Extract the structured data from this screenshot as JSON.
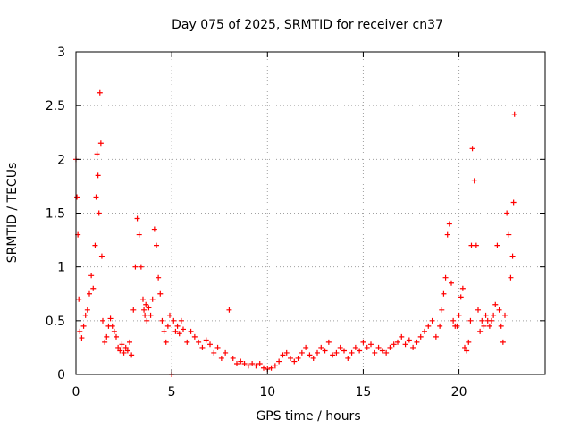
{
  "chart_data": {
    "type": "scatter",
    "title": "Day 075 of 2025, SRMTID for receiver cn37",
    "xlabel": "GPS time / hours",
    "ylabel": "SRMTID / TECUs",
    "xlim": [
      0,
      24.5
    ],
    "ylim": [
      0,
      3
    ],
    "xticks": [
      0,
      5,
      10,
      15,
      20
    ],
    "yticks": [
      0,
      0.5,
      1,
      1.5,
      2,
      2.5,
      3
    ],
    "grid": true,
    "marker": "plus",
    "series": [
      {
        "name": "SRMTID",
        "color": "#ff0000",
        "x": [
          0.0,
          0.05,
          0.1,
          0.15,
          0.2,
          0.3,
          0.4,
          0.5,
          0.6,
          0.7,
          0.8,
          0.9,
          1.0,
          1.05,
          1.1,
          1.15,
          1.2,
          1.25,
          1.3,
          1.35,
          1.4,
          1.5,
          1.6,
          1.7,
          1.8,
          1.9,
          2.0,
          2.1,
          2.2,
          2.3,
          2.4,
          2.5,
          2.6,
          2.7,
          2.8,
          2.9,
          3.0,
          3.1,
          3.2,
          3.3,
          3.4,
          3.5,
          3.55,
          3.6,
          3.65,
          3.7,
          3.8,
          3.9,
          4.0,
          4.1,
          4.2,
          4.3,
          4.4,
          4.5,
          4.6,
          4.7,
          4.8,
          4.9,
          5.0,
          5.1,
          5.2,
          5.3,
          5.4,
          5.5,
          5.6,
          5.8,
          6.0,
          6.2,
          6.4,
          6.6,
          6.8,
          7.0,
          7.2,
          7.4,
          7.6,
          7.8,
          8.0,
          8.2,
          8.4,
          8.6,
          8.8,
          9.0,
          9.2,
          9.4,
          9.6,
          9.8,
          10.0,
          10.2,
          10.4,
          10.6,
          10.8,
          11.0,
          11.2,
          11.4,
          11.6,
          11.8,
          12.0,
          12.2,
          12.4,
          12.6,
          12.8,
          13.0,
          13.2,
          13.4,
          13.6,
          13.8,
          14.0,
          14.2,
          14.4,
          14.6,
          14.8,
          15.0,
          15.2,
          15.4,
          15.6,
          15.8,
          16.0,
          16.2,
          16.4,
          16.6,
          16.8,
          17.0,
          17.2,
          17.4,
          17.6,
          17.8,
          18.0,
          18.2,
          18.4,
          18.6,
          18.8,
          19.0,
          19.1,
          19.2,
          19.3,
          19.4,
          19.5,
          19.6,
          19.7,
          19.8,
          19.9,
          20.0,
          20.1,
          20.2,
          20.3,
          20.4,
          20.5,
          20.6,
          20.65,
          20.7,
          20.8,
          20.9,
          21.0,
          21.1,
          21.2,
          21.3,
          21.4,
          21.5,
          21.6,
          21.7,
          21.8,
          21.9,
          22.0,
          22.1,
          22.2,
          22.3,
          22.4,
          22.5,
          22.6,
          22.7,
          22.8,
          22.85,
          22.9
        ],
        "y": [
          2.0,
          1.65,
          1.3,
          0.7,
          0.4,
          0.34,
          0.45,
          0.55,
          0.6,
          0.75,
          0.92,
          0.8,
          1.2,
          1.65,
          2.05,
          1.85,
          1.5,
          2.62,
          2.15,
          1.1,
          0.5,
          0.3,
          0.35,
          0.45,
          0.52,
          0.45,
          0.4,
          0.35,
          0.25,
          0.22,
          0.28,
          0.2,
          0.25,
          0.22,
          0.3,
          0.18,
          0.6,
          1.0,
          1.45,
          1.3,
          1.0,
          0.7,
          0.6,
          0.55,
          0.65,
          0.5,
          0.62,
          0.55,
          0.7,
          1.35,
          1.2,
          0.9,
          0.75,
          0.5,
          0.4,
          0.3,
          0.45,
          0.55,
          0.0,
          0.5,
          0.4,
          0.45,
          0.38,
          0.5,
          0.42,
          0.3,
          0.4,
          0.35,
          0.3,
          0.25,
          0.32,
          0.28,
          0.2,
          0.25,
          0.15,
          0.2,
          0.6,
          0.15,
          0.1,
          0.12,
          0.1,
          0.08,
          0.1,
          0.08,
          0.1,
          0.06,
          0.05,
          0.06,
          0.08,
          0.12,
          0.18,
          0.2,
          0.15,
          0.12,
          0.15,
          0.2,
          0.25,
          0.18,
          0.15,
          0.2,
          0.25,
          0.22,
          0.3,
          0.18,
          0.2,
          0.25,
          0.22,
          0.15,
          0.2,
          0.25,
          0.22,
          0.3,
          0.25,
          0.28,
          0.2,
          0.25,
          0.22,
          0.2,
          0.25,
          0.28,
          0.3,
          0.35,
          0.28,
          0.32,
          0.25,
          0.3,
          0.35,
          0.4,
          0.45,
          0.5,
          0.35,
          0.45,
          0.6,
          0.75,
          0.9,
          1.3,
          1.4,
          0.85,
          0.5,
          0.45,
          0.45,
          0.55,
          0.72,
          0.8,
          0.25,
          0.22,
          0.3,
          0.5,
          1.2,
          2.1,
          1.8,
          1.2,
          0.6,
          0.4,
          0.5,
          0.45,
          0.55,
          0.5,
          0.45,
          0.5,
          0.55,
          0.65,
          1.2,
          0.6,
          0.45,
          0.3,
          0.55,
          1.5,
          1.3,
          0.9,
          1.1,
          1.6,
          2.42
        ]
      }
    ]
  }
}
